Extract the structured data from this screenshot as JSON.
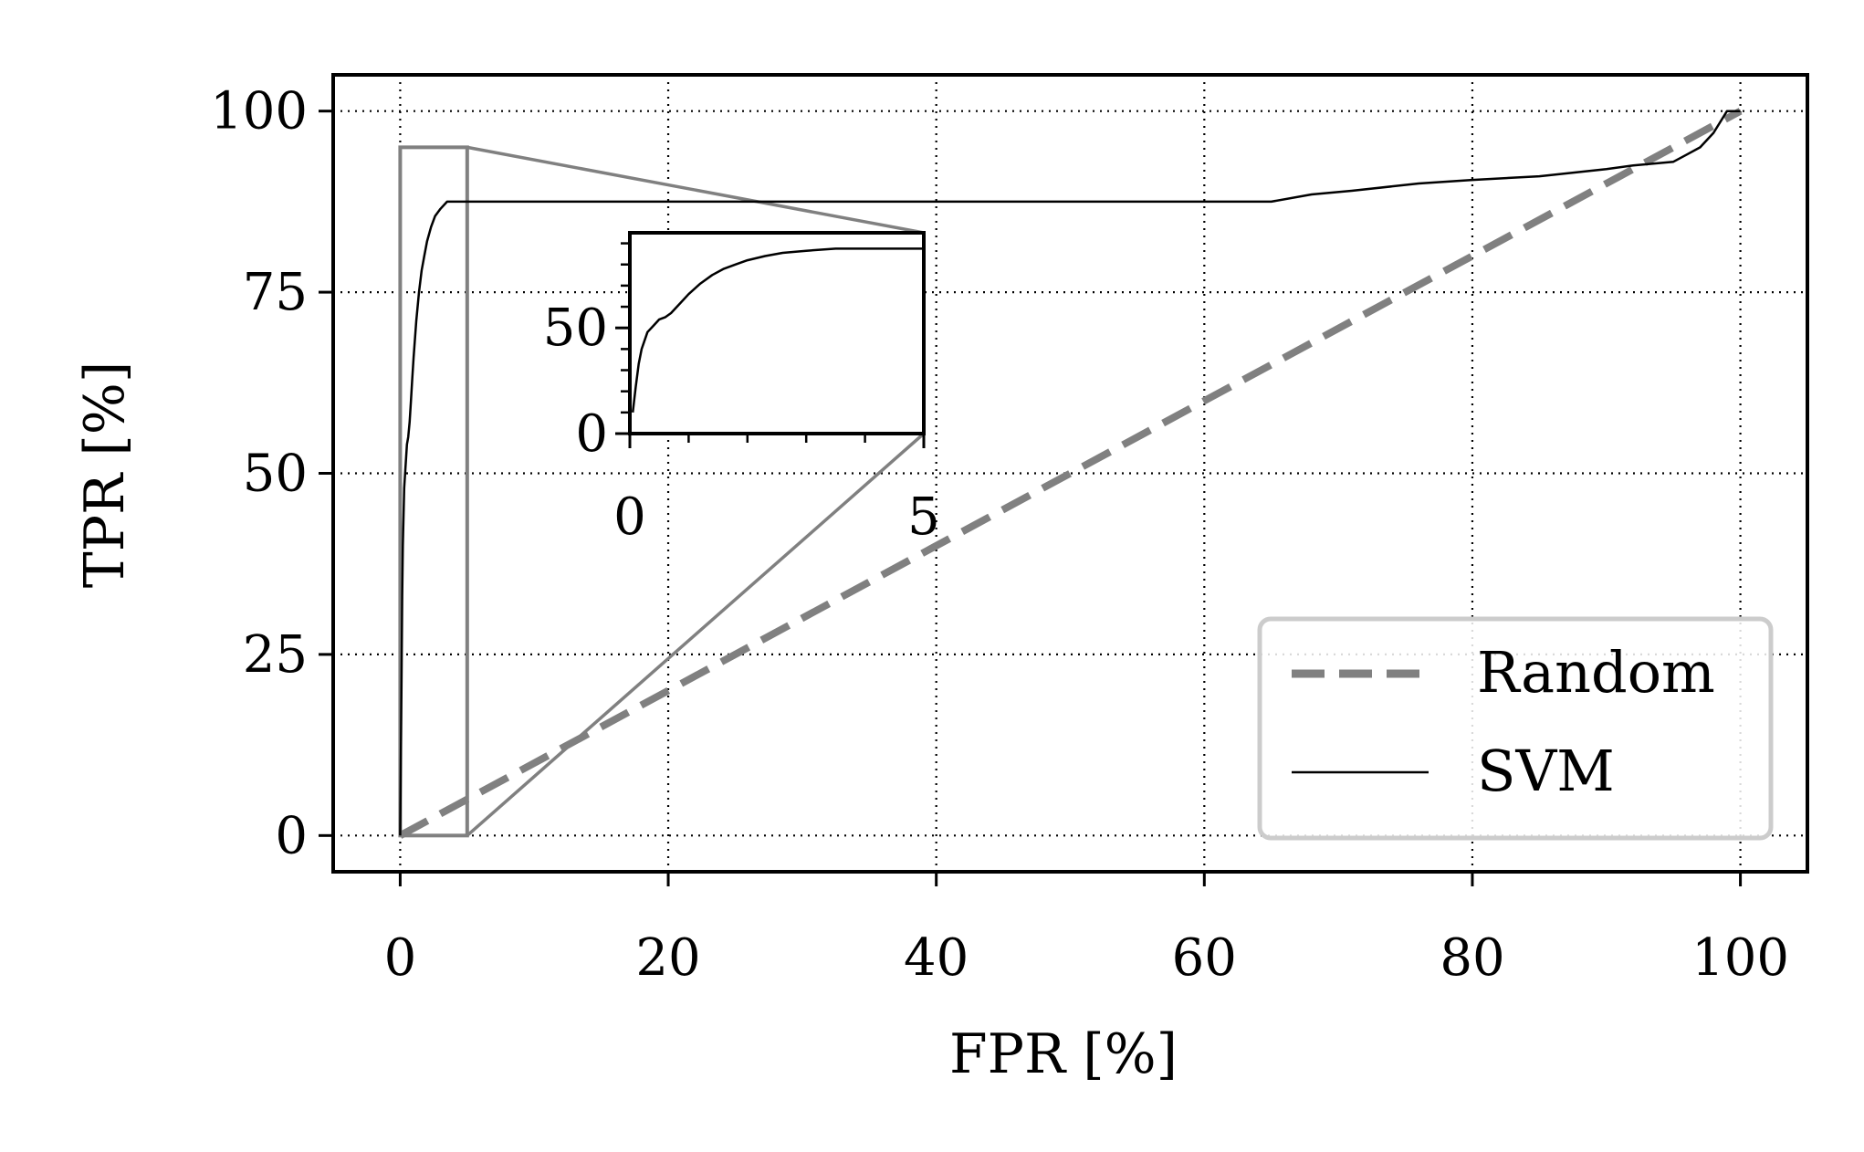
{
  "chart_data": {
    "type": "line",
    "title": "",
    "xlabel": "FPR [%]",
    "ylabel": "TPR [%]",
    "xlim": [
      -5,
      105
    ],
    "ylim": [
      -5,
      105
    ],
    "xticks": [
      0,
      20,
      40,
      60,
      80,
      100
    ],
    "yticks": [
      0,
      25,
      50,
      75,
      100
    ],
    "grid": true,
    "grid_style": "dotted",
    "legend_position": "lower-right",
    "series": [
      {
        "name": "Random",
        "style": "dashed",
        "color": "#808080",
        "x": [
          0,
          100
        ],
        "y": [
          0,
          100
        ]
      },
      {
        "name": "SVM",
        "style": "solid",
        "color": "#000000",
        "x": [
          0,
          0.05,
          0.1,
          0.15,
          0.2,
          0.3,
          0.4,
          0.5,
          0.6,
          0.7,
          0.8,
          0.9,
          1.0,
          1.2,
          1.4,
          1.6,
          1.8,
          2.0,
          2.3,
          2.6,
          3.0,
          3.5,
          4.5,
          10,
          20,
          40,
          65,
          68,
          71,
          76,
          80,
          85,
          90,
          92,
          95,
          96,
          97,
          98,
          99,
          100
        ],
        "y": [
          0,
          10,
          22,
          33,
          40,
          48,
          51,
          54,
          55,
          57,
          60,
          63,
          66,
          71,
          75,
          78,
          80,
          82,
          84,
          85.5,
          86.5,
          87.5,
          87.5,
          87.5,
          87.5,
          87.5,
          87.5,
          88.5,
          89,
          90,
          90.5,
          91,
          92,
          92.5,
          93,
          94,
          95,
          97,
          100,
          100
        ]
      }
    ],
    "inset": {
      "xlim": [
        0,
        5
      ],
      "ylim": [
        0,
        95
      ],
      "xticks": [
        0,
        5
      ],
      "yticks": [
        0,
        50
      ],
      "x": [
        0.05,
        0.1,
        0.15,
        0.2,
        0.3,
        0.4,
        0.5,
        0.6,
        0.7,
        0.8,
        0.9,
        1.0,
        1.2,
        1.4,
        1.6,
        1.8,
        2.0,
        2.3,
        2.6,
        3.0,
        3.5,
        4.0,
        5.0
      ],
      "y": [
        10,
        22,
        33,
        40,
        48,
        51,
        54,
        55,
        57,
        60,
        63,
        66,
        71,
        75,
        78,
        80,
        82,
        84,
        85.5,
        86.5,
        87.5,
        87.5,
        87.5
      ]
    },
    "zoom_region": {
      "x": [
        0,
        5
      ],
      "y": [
        0,
        95
      ]
    }
  }
}
